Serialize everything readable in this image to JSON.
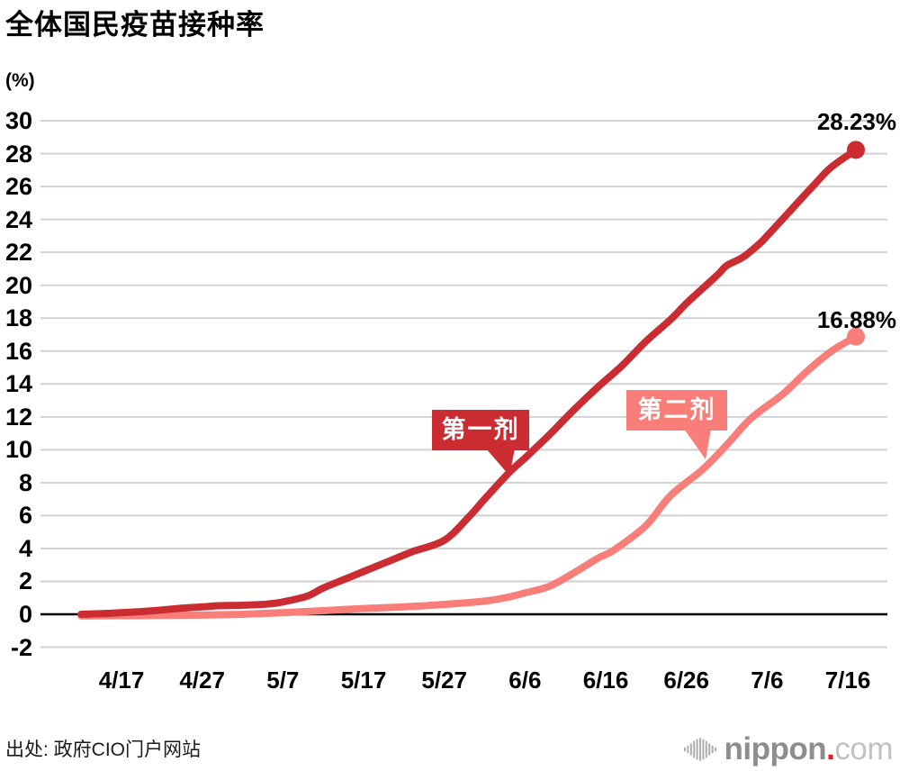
{
  "header": {
    "title": "全体国民疫苗接种率"
  },
  "chart_data": {
    "type": "line",
    "title": "全体国民疫苗接种率",
    "y_unit_label": "(%)",
    "ylim": [
      -2,
      30
    ],
    "y_ticks": [
      30,
      28,
      26,
      24,
      22,
      20,
      18,
      16,
      14,
      12,
      10,
      8,
      6,
      4,
      2,
      0,
      -2
    ],
    "x_tick_labels": [
      "4/17",
      "4/27",
      "5/7",
      "5/17",
      "5/27",
      "6/6",
      "6/16",
      "6/26",
      "7/6",
      "7/16"
    ],
    "grid": "horizontal",
    "legend_position": "inline-bubbles",
    "series": [
      {
        "name": "第一剂",
        "color": "#cb2c32",
        "end_label": "28.23%",
        "end_value": 28.23,
        "points": [
          [
            "4/12",
            0
          ],
          [
            "4/15",
            0.05
          ],
          [
            "4/18",
            0.12
          ],
          [
            "4/21",
            0.22
          ],
          [
            "4/24",
            0.35
          ],
          [
            "4/27",
            0.45
          ],
          [
            "4/29",
            0.52
          ],
          [
            "5/2",
            0.55
          ],
          [
            "5/5",
            0.62
          ],
          [
            "5/7",
            0.75
          ],
          [
            "5/10",
            1.1
          ],
          [
            "5/12",
            1.6
          ],
          [
            "5/15",
            2.2
          ],
          [
            "5/17",
            2.6
          ],
          [
            "5/20",
            3.2
          ],
          [
            "5/23",
            3.8
          ],
          [
            "5/27",
            4.5
          ],
          [
            "5/30",
            5.9
          ],
          [
            "6/1",
            7.0
          ],
          [
            "6/4",
            8.6
          ],
          [
            "6/6",
            9.5
          ],
          [
            "6/9",
            10.9
          ],
          [
            "6/12",
            12.4
          ],
          [
            "6/15",
            13.8
          ],
          [
            "6/18",
            15.1
          ],
          [
            "6/21",
            16.6
          ],
          [
            "6/24",
            17.9
          ],
          [
            "6/26",
            18.9
          ],
          [
            "6/28",
            19.8
          ],
          [
            "6/30",
            20.7
          ],
          [
            "7/1",
            21.2
          ],
          [
            "7/3",
            21.7
          ],
          [
            "7/5",
            22.5
          ],
          [
            "7/6",
            23.0
          ],
          [
            "7/9",
            24.6
          ],
          [
            "7/12",
            26.2
          ],
          [
            "7/14",
            27.2
          ],
          [
            "7/17",
            28.23
          ]
        ]
      },
      {
        "name": "第二剂",
        "color": "#f97d79",
        "end_label": "16.88%",
        "end_value": 16.88,
        "points": [
          [
            "4/12",
            -0.1
          ],
          [
            "4/20",
            -0.08
          ],
          [
            "4/27",
            -0.05
          ],
          [
            "5/2",
            0.0
          ],
          [
            "5/7",
            0.1
          ],
          [
            "5/12",
            0.22
          ],
          [
            "5/17",
            0.35
          ],
          [
            "5/22",
            0.45
          ],
          [
            "5/27",
            0.6
          ],
          [
            "6/1",
            0.8
          ],
          [
            "6/4",
            1.05
          ],
          [
            "6/6",
            1.3
          ],
          [
            "6/9",
            1.7
          ],
          [
            "6/12",
            2.5
          ],
          [
            "6/15",
            3.4
          ],
          [
            "6/17",
            3.9
          ],
          [
            "6/21",
            5.4
          ],
          [
            "6/24",
            7.2
          ],
          [
            "6/28",
            8.8
          ],
          [
            "7/1",
            10.3
          ],
          [
            "7/4",
            11.9
          ],
          [
            "7/8",
            13.4
          ],
          [
            "7/11",
            14.8
          ],
          [
            "7/14",
            16.0
          ],
          [
            "7/17",
            16.88
          ]
        ]
      }
    ]
  },
  "footer": {
    "source": "出处: 政府CIO门户网站",
    "logo": {
      "name": "nippon",
      "dot": ".",
      "tld": "com"
    }
  },
  "colors": {
    "first_dose": "#cb2c32",
    "second_dose": "#f97d79",
    "gridline": "#d2d2d2",
    "zero_axis": "#000000",
    "logo_dot_red": "#e8191c"
  }
}
